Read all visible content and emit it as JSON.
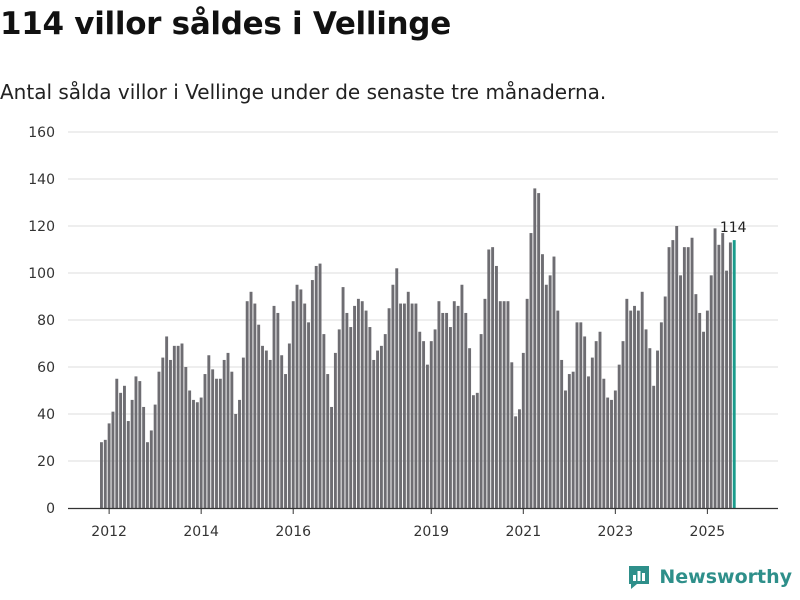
{
  "header": {
    "title": "114 villor såldes i Vellinge",
    "subtitle": "Antal sålda villor i Vellinge under de senaste tre månaderna."
  },
  "brand": {
    "name": "Newsworthy",
    "icon": "chart-icon"
  },
  "colors": {
    "bar": "#6e6d72",
    "highlight": "#1a9c8c",
    "grid": "#dcdcdc",
    "axis": "#333333",
    "brand": "#2e8f8a"
  },
  "chart_data": {
    "type": "bar",
    "title": "114 villor såldes i Vellinge",
    "subtitle": "Antal sålda villor i Vellinge under de senaste tre månaderna.",
    "xlabel": "",
    "ylabel": "",
    "ylim": [
      0,
      160
    ],
    "yticks": [
      0,
      20,
      40,
      60,
      80,
      100,
      120,
      140,
      160
    ],
    "xtick_labels": [
      {
        "label": "2012",
        "index": 2
      },
      {
        "label": "2014",
        "index": 26
      },
      {
        "label": "2016",
        "index": 50
      },
      {
        "label": "2019",
        "index": 86
      },
      {
        "label": "2021",
        "index": 110
      },
      {
        "label": "2023",
        "index": 134
      },
      {
        "label": "2025",
        "index": 158
      }
    ],
    "grid": true,
    "start": "2011-11",
    "end": "2025-10",
    "highlight_label": "114",
    "values": [
      28,
      29,
      36,
      41,
      55,
      49,
      52,
      37,
      46,
      56,
      54,
      43,
      28,
      33,
      44,
      58,
      64,
      73,
      63,
      69,
      69,
      70,
      60,
      50,
      46,
      45,
      47,
      57,
      65,
      59,
      55,
      55,
      63,
      66,
      58,
      40,
      46,
      64,
      88,
      92,
      87,
      78,
      69,
      67,
      63,
      86,
      83,
      65,
      57,
      70,
      88,
      95,
      93,
      87,
      79,
      97,
      103,
      104,
      74,
      57,
      43,
      66,
      76,
      94,
      83,
      77,
      86,
      89,
      88,
      84,
      77,
      63,
      67,
      69,
      74,
      85,
      95,
      102,
      87,
      87,
      92,
      87,
      87,
      75,
      71,
      61,
      71,
      76,
      88,
      83,
      83,
      77,
      88,
      86,
      95,
      83,
      68,
      48,
      49,
      74,
      89,
      110,
      111,
      103,
      88,
      88,
      88,
      62,
      39,
      42,
      66,
      89,
      117,
      136,
      134,
      108,
      95,
      99,
      107,
      84,
      63,
      50,
      57,
      58,
      79,
      79,
      73,
      56,
      64,
      71,
      75,
      55,
      47,
      46,
      50,
      61,
      71,
      89,
      84,
      86,
      84,
      92,
      76,
      68,
      52,
      67,
      79,
      90,
      111,
      114,
      120,
      99,
      111,
      111,
      115,
      91,
      83,
      75,
      84,
      99,
      119,
      112,
      117,
      101,
      113,
      114
    ]
  }
}
